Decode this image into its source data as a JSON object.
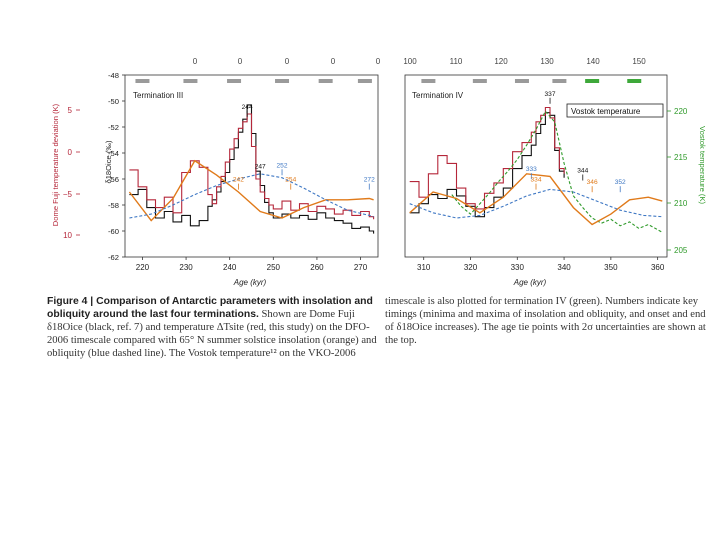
{
  "colors": {
    "black": "#111111",
    "red": "#b5273a",
    "orange": "#e07a1a",
    "blue": "#3f78c4",
    "green": "#2f9a2a",
    "tie_grey": "#9a9a9a",
    "tie_green": "#3ea83a"
  },
  "caption": {
    "fig_label": "Figure 4 | Comparison of Antarctic parameters with insolation and obliquity around the last four terminations.",
    "left_text": "Shown are Dome Fuji δ18Oice (black, ref. 7) and temperature ΔTsite (red, this study) on the DFO-2006 timescale compared with 65° N summer solstice insolation (orange) and obliquity (blue dashed line). The Vostok temperature¹² on the VKO-2006",
    "right_text": "timescale is also plotted for termination IV (green). Numbers indicate key timings (minima and maxima of insolation and obliquity, and onset and end of δ18Oice increases). The age tie points with 2σ uncertainties are shown at the top."
  },
  "top_axis": {
    "left_ticks": [
      "0",
      "0",
      "0",
      "0",
      "0"
    ],
    "right_ticks": [
      "100",
      "110",
      "120",
      "130",
      "140",
      "150"
    ]
  },
  "chart_data": [
    {
      "type": "line",
      "title": "Termination III",
      "xlabel": "Age (kyr)",
      "xlim": [
        216,
        274
      ],
      "x_ticks": [
        "220",
        "230",
        "240",
        "250",
        "260",
        "270"
      ],
      "ylabel_inner": "δ18Oice (‰)",
      "ylim_inner": [
        -62,
        -48
      ],
      "inner_ticks": [
        "-48",
        "-50",
        "-52",
        "-54",
        "-56",
        "-58",
        "-60",
        "-62"
      ],
      "ylabel_outer": "Dome Fuji temperature deviation (K)",
      "outer_ticks": [
        "5",
        "0",
        "−5",
        "10"
      ],
      "series": [
        {
          "name": "Dome Fuji δ18Oice",
          "color": "#111111",
          "x": [
            217,
            219,
            221,
            223,
            225,
            227,
            229,
            231,
            233,
            235,
            236,
            237,
            238,
            239,
            240,
            241,
            242,
            243,
            244,
            245,
            246,
            247,
            248,
            249,
            250,
            252,
            254,
            256,
            258,
            260,
            262,
            264,
            266,
            268,
            270,
            272,
            273
          ],
          "y": [
            -57.2,
            -56.8,
            -58.2,
            -59.0,
            -58.5,
            -59.3,
            -58.8,
            -59.6,
            -59.2,
            -58.1,
            -57.6,
            -57.0,
            -56.2,
            -55.5,
            -54.5,
            -53.6,
            -52.4,
            -51.4,
            -50.3,
            -52.5,
            -55.4,
            -56.5,
            -57.8,
            -58.6,
            -59.0,
            -58.7,
            -59.0,
            -58.8,
            -59.1,
            -58.6,
            -59.0,
            -59.2,
            -59.4,
            -59.8,
            -59.7,
            -60.0,
            -60.2
          ]
        },
        {
          "name": "Dome Fuji ΔTsite",
          "color": "#b5273a",
          "x": [
            217,
            219,
            221,
            223,
            225,
            227,
            229,
            231,
            233,
            235,
            236,
            237,
            238,
            239,
            240,
            241,
            242,
            243,
            244,
            245,
            246,
            247,
            248,
            249,
            250,
            252,
            254,
            256,
            258,
            260,
            262,
            264,
            266,
            268,
            270,
            272,
            273
          ],
          "y": [
            -55.3,
            -56.6,
            -57.6,
            -58.2,
            -57.4,
            -58.6,
            -55.5,
            -54.6,
            -55.1,
            -57.2,
            -57.9,
            -56.6,
            -55.8,
            -54.7,
            -53.7,
            -52.9,
            -52.1,
            -51.6,
            -51.0,
            -53.5,
            -56.0,
            -57.0,
            -57.5,
            -58.0,
            -58.3,
            -57.7,
            -58.4,
            -57.9,
            -58.5,
            -58.1,
            -58.3,
            -58.7,
            -58.4,
            -58.8,
            -58.5,
            -58.9,
            -59.1
          ]
        },
        {
          "name": "65°N summer insolation",
          "color": "#e07a1a",
          "x": [
            217,
            222,
            227,
            232,
            237,
            242,
            247,
            252,
            257,
            262,
            267,
            272,
            273
          ],
          "y": [
            -57.0,
            -59.2,
            -57.5,
            -54.6,
            -55.7,
            -57.0,
            -58.5,
            -59.0,
            -58.2,
            -57.6,
            -57.6,
            -57.5,
            -57.6
          ]
        },
        {
          "name": "Obliquity",
          "color": "#3f78c4",
          "dashed": true,
          "x": [
            217,
            222,
            227,
            232,
            237,
            242,
            247,
            252,
            257,
            262,
            267,
            272,
            273
          ],
          "y": [
            -59.0,
            -58.7,
            -58.0,
            -57.2,
            -56.5,
            -56.0,
            -55.6,
            -55.9,
            -56.7,
            -57.6,
            -58.4,
            -58.8,
            -58.9
          ]
        }
      ],
      "annotations": [
        {
          "label": "244",
          "color": "#111111",
          "x": 244,
          "y": -50.6
        },
        {
          "label": "247",
          "color": "#111111",
          "x": 247,
          "y": -55.2
        },
        {
          "label": "252",
          "color": "#3f78c4",
          "x": 252,
          "y": -55.1
        },
        {
          "label": "242",
          "color": "#e07a1a",
          "x": 242,
          "y": -56.2
        },
        {
          "label": "254",
          "color": "#e07a1a",
          "x": 254,
          "y": -56.2
        },
        {
          "label": "272",
          "color": "#3f78c4",
          "x": 272,
          "y": -56.2
        }
      ],
      "tie_points": [
        {
          "x": 220,
          "color": "#9a9a9a"
        },
        {
          "x": 231,
          "color": "#9a9a9a"
        },
        {
          "x": 241,
          "color": "#9a9a9a"
        },
        {
          "x": 252,
          "color": "#9a9a9a"
        },
        {
          "x": 262,
          "color": "#9a9a9a"
        },
        {
          "x": 271,
          "color": "#9a9a9a"
        }
      ]
    },
    {
      "type": "line",
      "title": "Termination IV",
      "xlabel": "Age (kyr)",
      "xlim": [
        306,
        362
      ],
      "x_ticks": [
        "310",
        "320",
        "330",
        "340",
        "350",
        "360"
      ],
      "ylim_inner": [
        -62,
        -48
      ],
      "ylabel_right": "Vostok temperature (K)",
      "right_ticks": [
        "220",
        "215",
        "210",
        "205"
      ],
      "legend": "Vostok temperature",
      "series": [
        {
          "name": "Dome Fuji δ18Oice",
          "color": "#111111",
          "x": [
            307,
            309,
            311,
            313,
            315,
            317,
            319,
            321,
            323,
            325,
            327,
            329,
            331,
            333,
            334,
            335,
            336,
            337,
            338,
            339,
            340
          ],
          "y": [
            -58.6,
            -57.9,
            -57.2,
            -57.5,
            -56.8,
            -57.3,
            -58.1,
            -58.9,
            -58.2,
            -57.4,
            -56.7,
            -55.2,
            -54.2,
            -53.4,
            -52.5,
            -51.8,
            -50.9,
            -51.1,
            -53.8,
            -55.4,
            -55.9
          ]
        },
        {
          "name": "Dome Fuji ΔTsite",
          "color": "#b5273a",
          "x": [
            307,
            309,
            311,
            313,
            315,
            317,
            319,
            321,
            323,
            325,
            327,
            329,
            331,
            333,
            334,
            335,
            336,
            337,
            338,
            339,
            340
          ],
          "y": [
            -56.2,
            -57.4,
            -55.6,
            -54.2,
            -54.8,
            -56.7,
            -57.9,
            -58.3,
            -57.1,
            -56.3,
            -55.2,
            -53.9,
            -53.2,
            -52.4,
            -51.6,
            -51.1,
            -50.5,
            -51.3,
            -53.6,
            -55.2,
            -55.6
          ]
        },
        {
          "name": "Vostok temperature",
          "color": "#2f9a2a",
          "dashed": true,
          "x": [
            316,
            318,
            320,
            322,
            324,
            326,
            328,
            330,
            332,
            334,
            336,
            338,
            340,
            342,
            344,
            346,
            348,
            350,
            352,
            354,
            356,
            358,
            360,
            361
          ],
          "y": [
            -57.2,
            -58.1,
            -58.7,
            -57.9,
            -57.1,
            -56.2,
            -55.4,
            -54.5,
            -53.4,
            -52.2,
            -50.8,
            -51.6,
            -54.8,
            -57.3,
            -58.2,
            -59.0,
            -59.4,
            -59.1,
            -59.6,
            -59.3,
            -59.8,
            -59.5,
            -59.9,
            -60.1
          ]
        },
        {
          "name": "65°N summer insolation",
          "color": "#e07a1a",
          "x": [
            307,
            312,
            317,
            322,
            327,
            332,
            337,
            342,
            346,
            350,
            354,
            358,
            361
          ],
          "y": [
            -58.6,
            -57.0,
            -57.5,
            -58.6,
            -57.4,
            -55.6,
            -55.8,
            -58.2,
            -59.5,
            -58.7,
            -57.6,
            -57.4,
            -57.7
          ]
        },
        {
          "name": "Obliquity",
          "color": "#3f78c4",
          "dashed": true,
          "x": [
            307,
            312,
            317,
            322,
            327,
            332,
            337,
            342,
            347,
            352,
            357,
            361
          ],
          "y": [
            -57.9,
            -58.6,
            -59.0,
            -58.8,
            -58.1,
            -57.3,
            -56.8,
            -57.0,
            -57.7,
            -58.4,
            -58.8,
            -58.9
          ]
        }
      ],
      "annotations": [
        {
          "label": "337",
          "color": "#111111",
          "x": 337,
          "y": -49.6
        },
        {
          "label": "333",
          "color": "#3f78c4",
          "x": 333,
          "y": -55.4
        },
        {
          "label": "334",
          "color": "#e07a1a",
          "x": 334,
          "y": -56.2
        },
        {
          "label": "344",
          "color": "#111111",
          "x": 344,
          "y": -55.5
        },
        {
          "label": "346",
          "color": "#e07a1a",
          "x": 346,
          "y": -56.4
        },
        {
          "label": "352",
          "color": "#3f78c4",
          "x": 352,
          "y": -56.4
        }
      ],
      "tie_points": [
        {
          "x": 311,
          "color": "#9a9a9a"
        },
        {
          "x": 322,
          "color": "#9a9a9a"
        },
        {
          "x": 331,
          "color": "#9a9a9a"
        },
        {
          "x": 339,
          "color": "#9a9a9a"
        },
        {
          "x": 346,
          "color": "#3ea83a"
        },
        {
          "x": 355,
          "color": "#3ea83a"
        }
      ]
    }
  ]
}
